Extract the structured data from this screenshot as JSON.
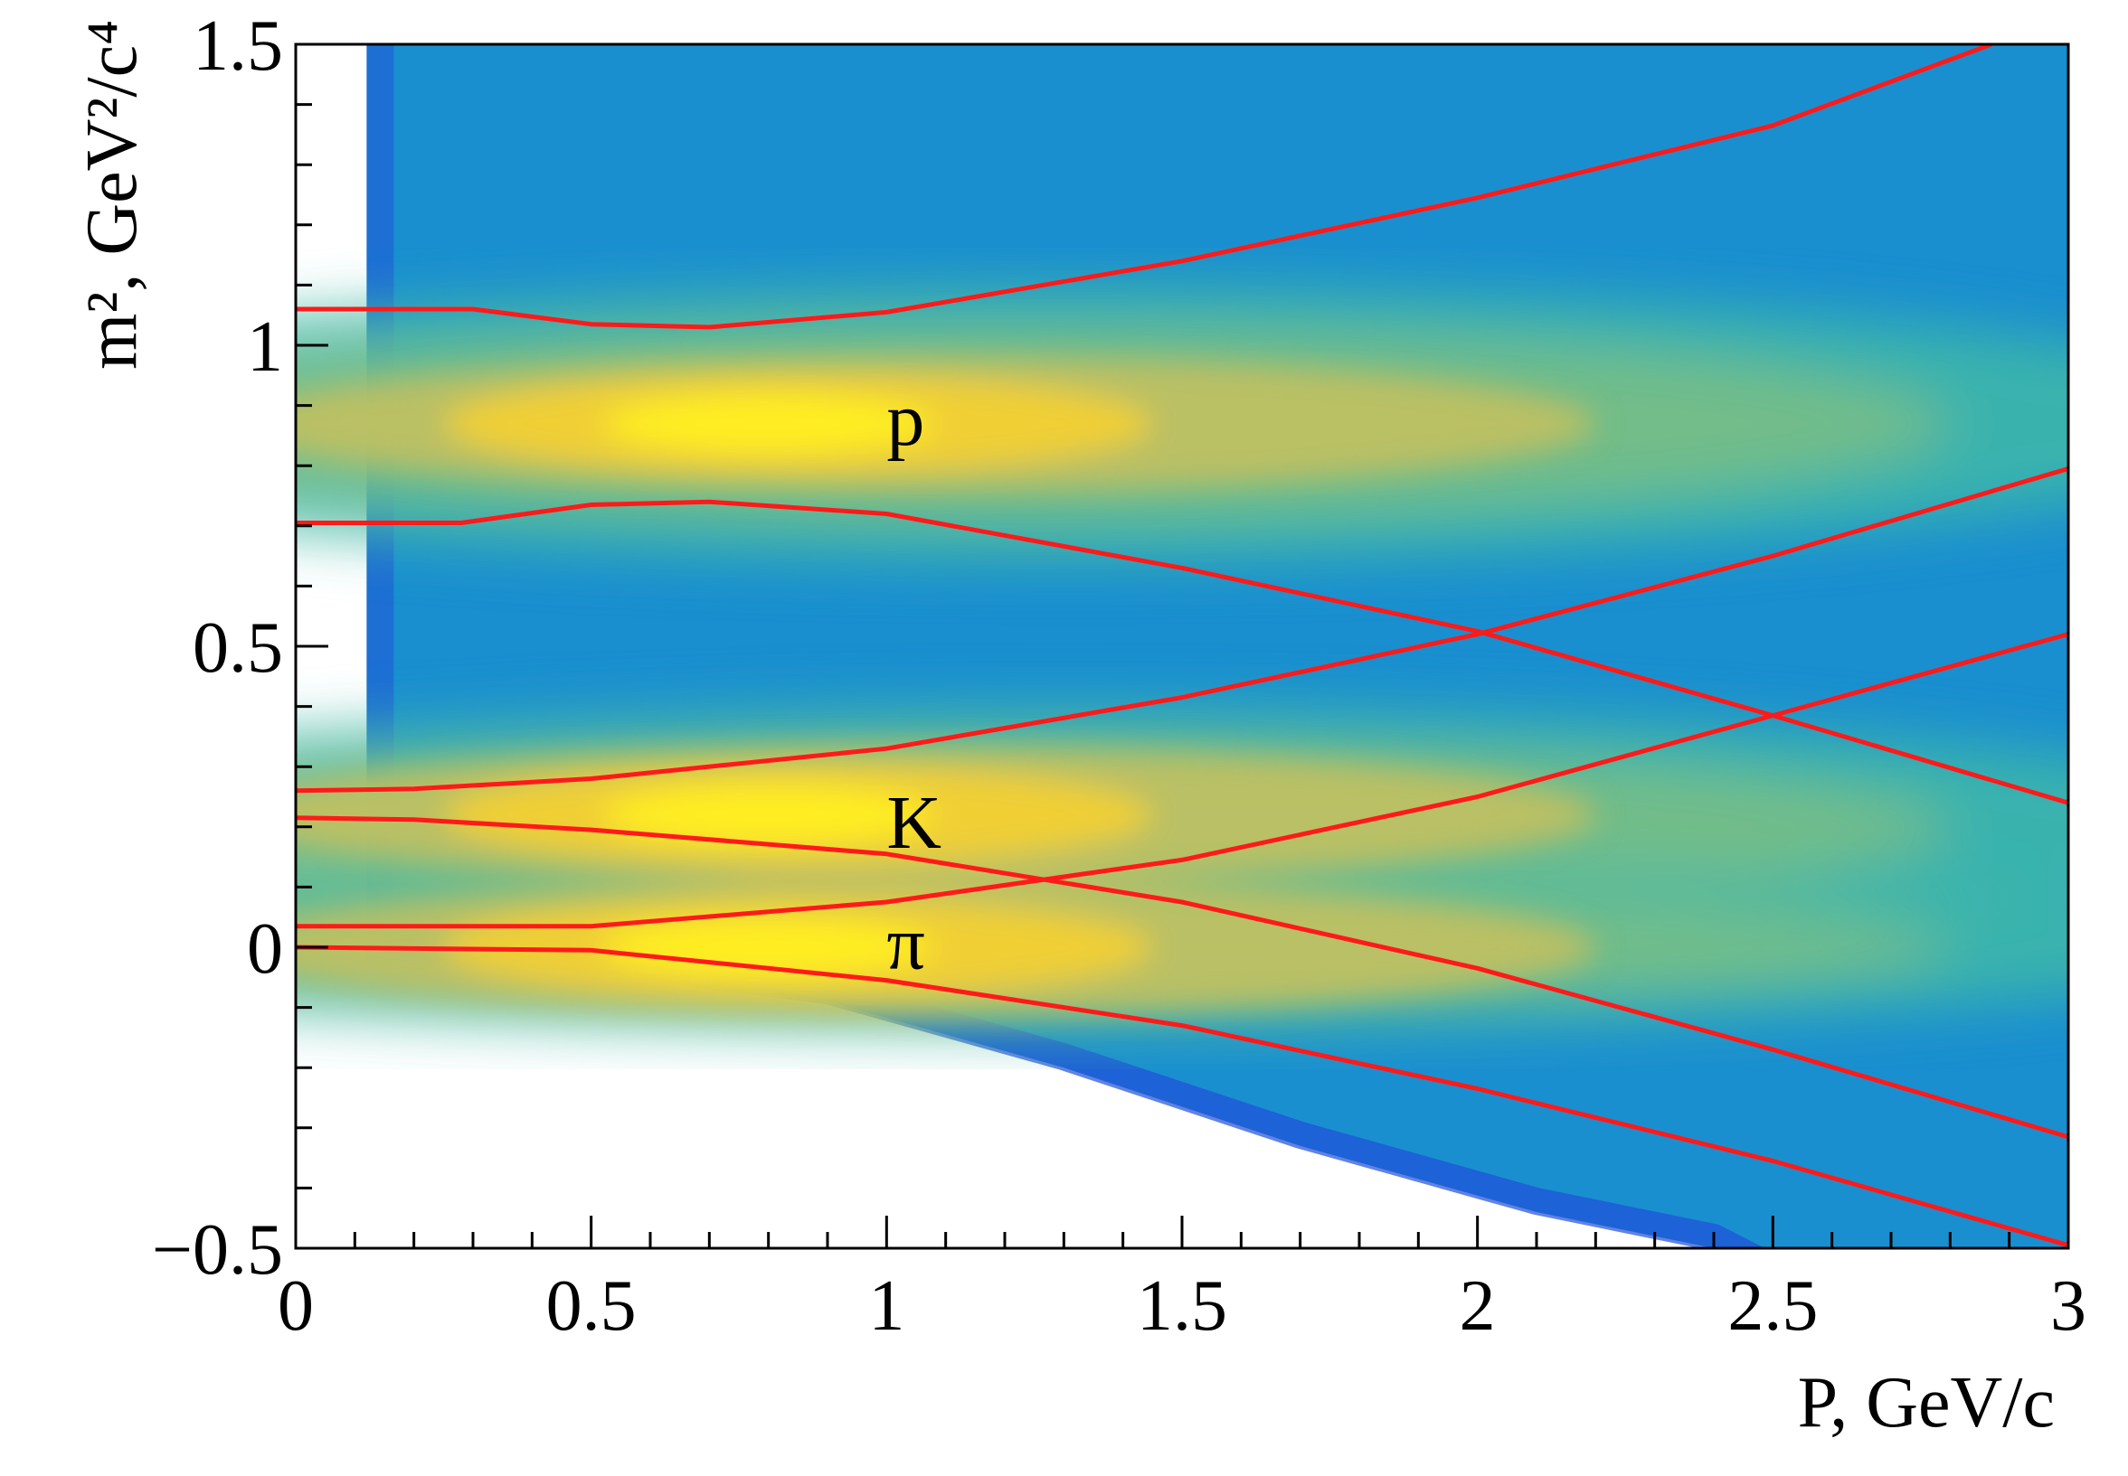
{
  "chart_data": {
    "type": "heatmap",
    "title": "",
    "xlabel": "P, GeV/c",
    "ylabel": "m², GeV²/c⁴",
    "xlim": [
      0,
      3
    ],
    "ylim": [
      -0.5,
      1.5
    ],
    "xticks": [
      "0",
      "0.5",
      "1",
      "1.5",
      "2",
      "2.5",
      "3"
    ],
    "yticks": [
      "−0.5",
      "0",
      "0.5",
      "1",
      "1.5"
    ],
    "grid": false,
    "colormap": [
      "#1f4fd8",
      "#1a8fd0",
      "#20aec0",
      "#3fb8a8",
      "#7dbf84",
      "#c2c060",
      "#f0cf35",
      "#ffee20"
    ],
    "line_color": "#ff1a1a",
    "density_peaks": [
      {
        "label": "p",
        "x": 0.85,
        "y": 0.87,
        "label_x": 1.0,
        "label_y": 0.88
      },
      {
        "label": "K",
        "x": 0.85,
        "y": 0.22,
        "label_x": 1.0,
        "label_y": 0.21
      },
      {
        "label": "π",
        "x": 0.85,
        "y": 0.0,
        "label_x": 1.0,
        "label_y": 0.01
      }
    ],
    "series": [
      {
        "x": [
          0,
          0.3,
          0.5,
          0.7,
          1.0,
          1.5,
          2.0,
          2.5,
          2.87
        ],
        "y": [
          1.06,
          1.06,
          1.035,
          1.03,
          1.055,
          1.14,
          1.245,
          1.365,
          1.5
        ]
      },
      {
        "x": [
          0,
          0.28,
          0.5,
          0.7,
          1.0,
          1.5,
          2.0,
          2.5,
          3.0
        ],
        "y": [
          0.705,
          0.705,
          0.735,
          0.74,
          0.72,
          0.63,
          0.525,
          0.385,
          0.24
        ]
      },
      {
        "x": [
          0,
          0.2,
          0.5,
          1.0,
          1.5,
          2.0,
          2.5,
          3.0
        ],
        "y": [
          0.26,
          0.263,
          0.28,
          0.33,
          0.415,
          0.52,
          0.65,
          0.795
        ]
      },
      {
        "x": [
          0,
          0.2,
          0.5,
          1.0,
          1.5,
          2.0,
          2.5,
          3.0
        ],
        "y": [
          0.215,
          0.212,
          0.195,
          0.155,
          0.075,
          -0.035,
          -0.17,
          -0.315
        ]
      },
      {
        "x": [
          0,
          0.5,
          1.0,
          1.5,
          2.0,
          2.5,
          3.0
        ],
        "y": [
          0.035,
          0.035,
          0.075,
          0.145,
          0.25,
          0.385,
          0.52
        ]
      },
      {
        "x": [
          0,
          0.5,
          1.0,
          1.5,
          2.0,
          2.5,
          3.0
        ],
        "y": [
          0.0,
          -0.005,
          -0.055,
          -0.13,
          -0.235,
          -0.355,
          -0.495
        ]
      }
    ]
  }
}
